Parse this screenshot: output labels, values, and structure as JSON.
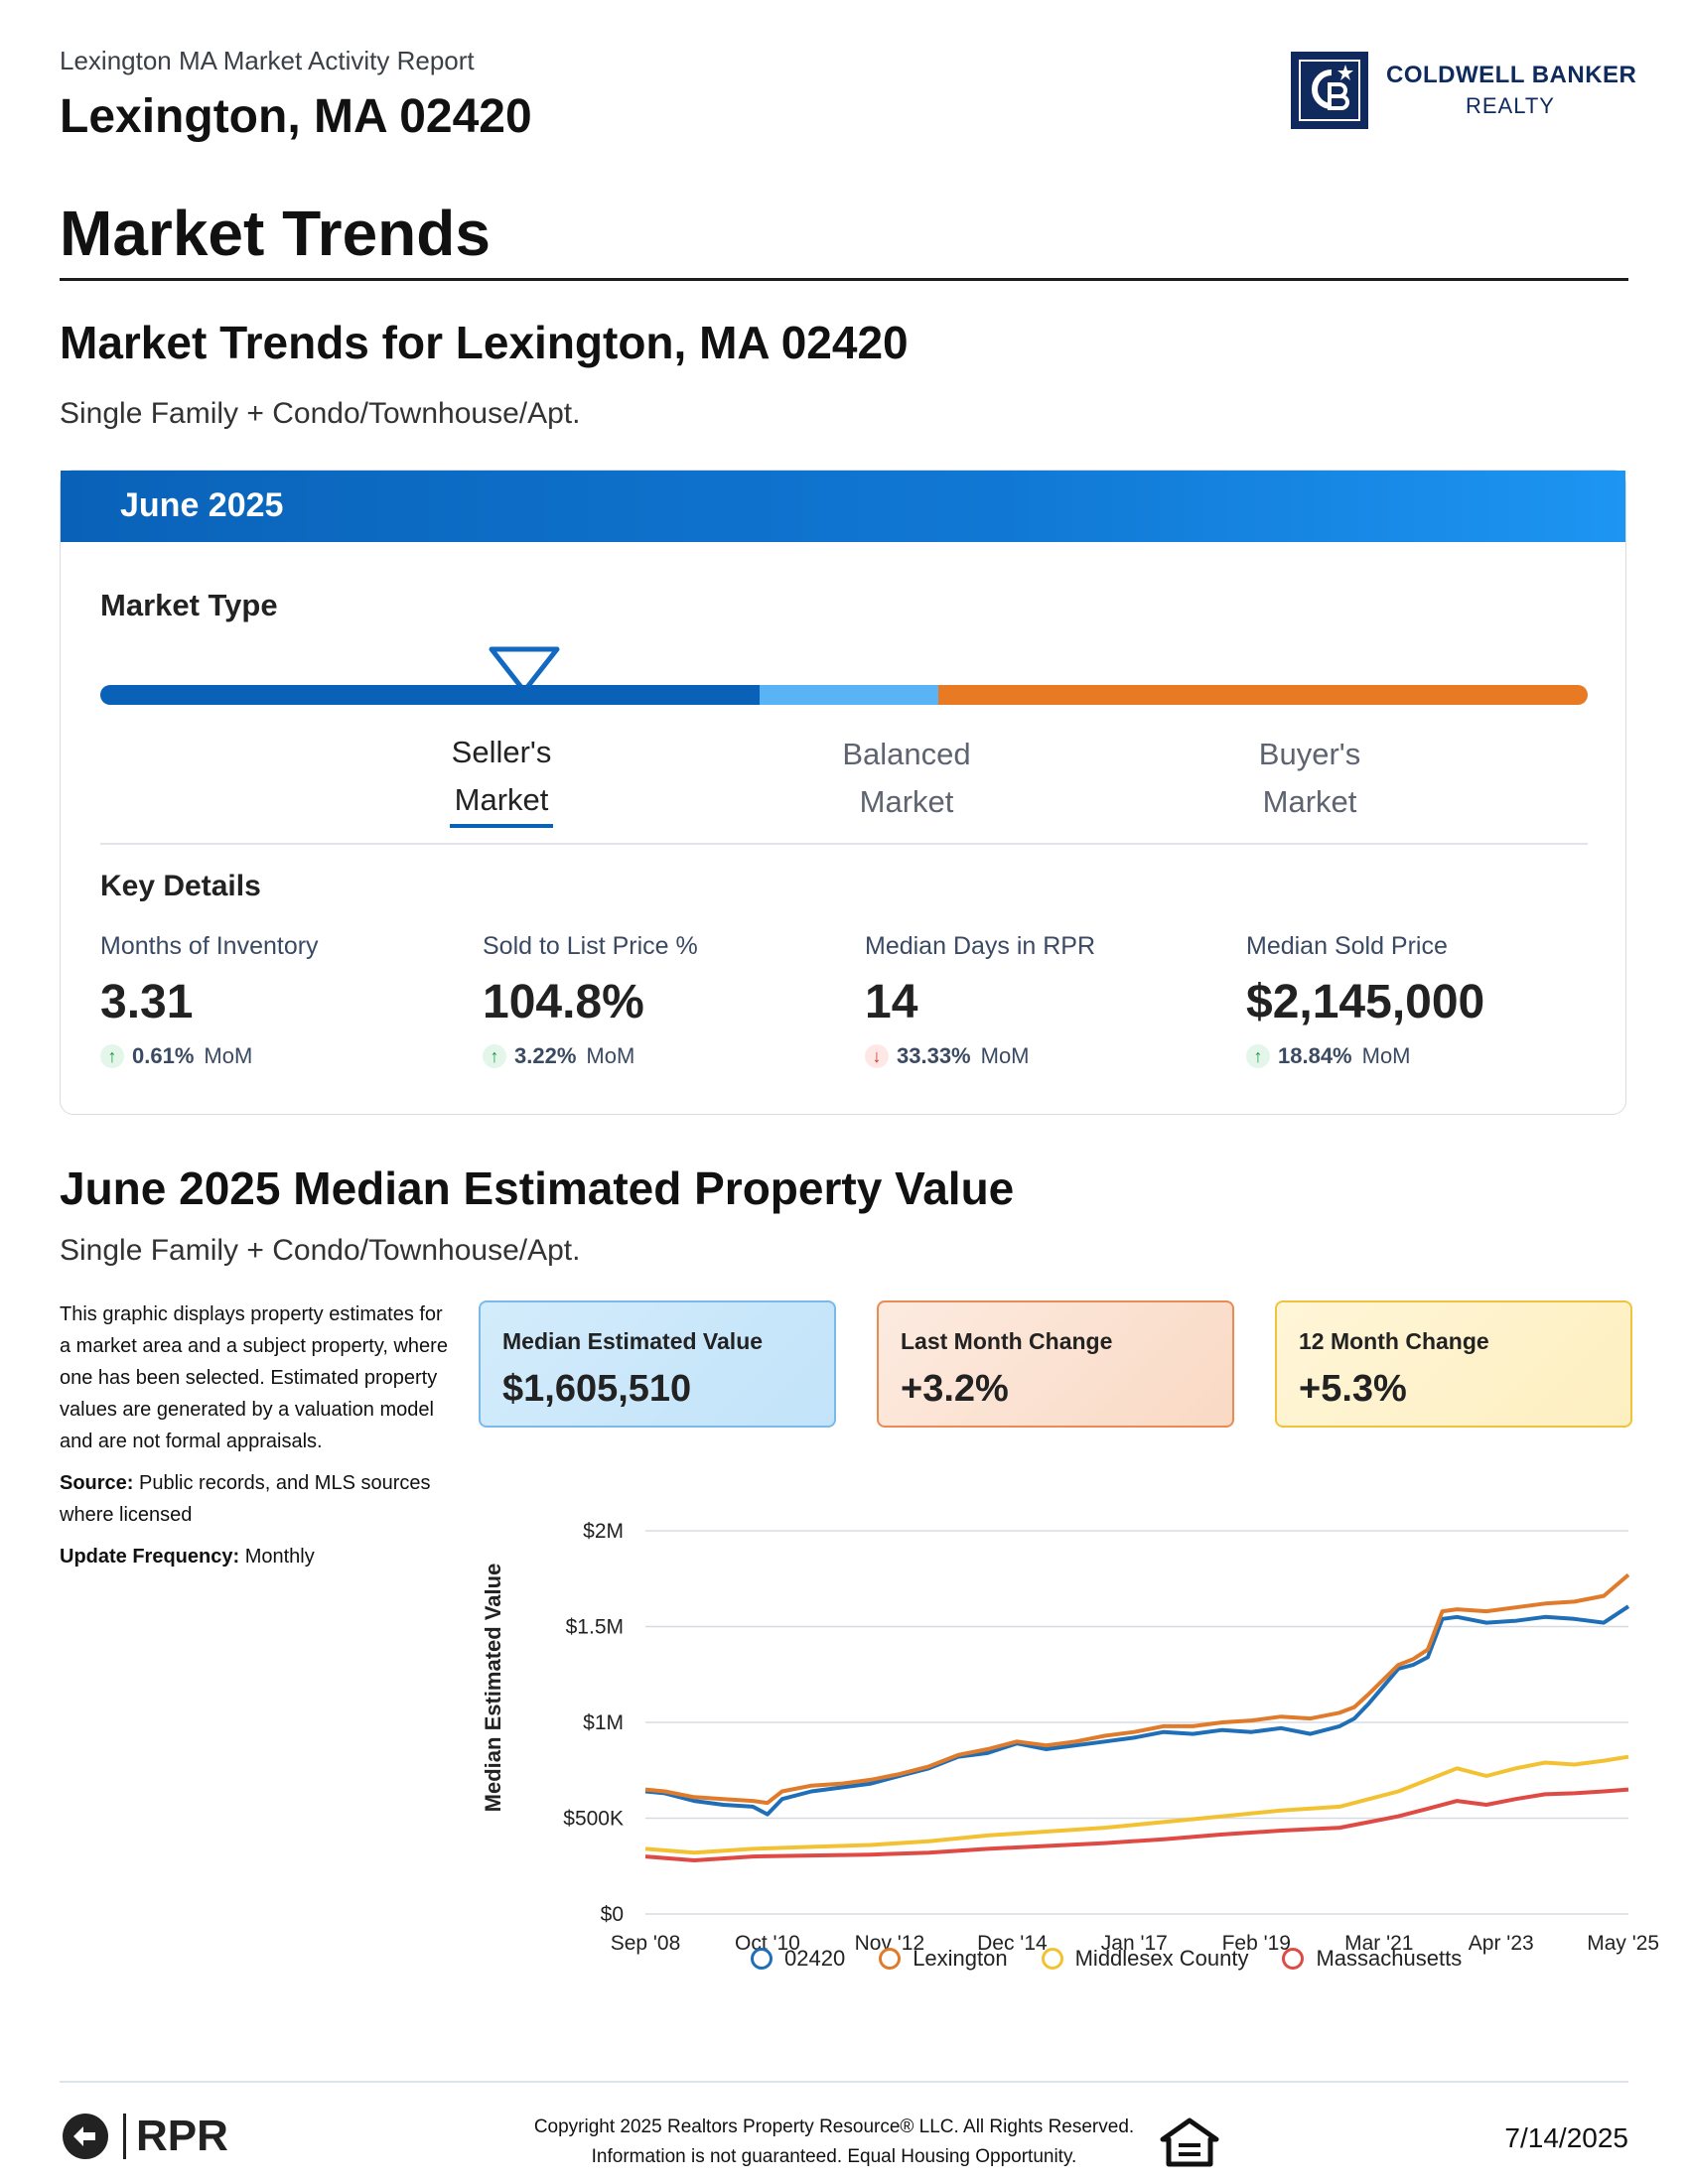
{
  "header": {
    "report_title": "Lexington MA Market Activity Report",
    "location": "Lexington, MA 02420",
    "logo_line1": "COLDWELL BANKER",
    "logo_line2": "REALTY"
  },
  "section_title": "Market Trends",
  "market_trends": {
    "title": "Market Trends for Lexington, MA 02420",
    "subtitle": "Single Family + Condo/Townhouse/Apt.",
    "month": "June 2025",
    "market_type_label": "Market Type",
    "market_types": [
      {
        "line1": "Seller's",
        "line2": "Market",
        "active": true
      },
      {
        "line1": "Balanced",
        "line2": "Market",
        "active": false
      },
      {
        "line1": "Buyer's",
        "line2": "Market",
        "active": false
      }
    ],
    "key_details_label": "Key Details",
    "key_details": [
      {
        "label": "Months of Inventory",
        "value": "3.31",
        "direction": "up",
        "change": "0.61%",
        "period": "MoM"
      },
      {
        "label": "Sold to List Price %",
        "value": "104.8%",
        "direction": "up",
        "change": "3.22%",
        "period": "MoM"
      },
      {
        "label": "Median Days in RPR",
        "value": "14",
        "direction": "down",
        "change": "33.33%",
        "period": "MoM"
      },
      {
        "label": "Median Sold Price",
        "value": "$2,145,000",
        "direction": "up",
        "change": "18.84%",
        "period": "MoM"
      }
    ]
  },
  "estimated_value": {
    "title": "June 2025 Median Estimated Property Value",
    "subtitle": "Single Family + Condo/Townhouse/Apt.",
    "description": "This graphic displays property estimates for a market area and a subject property, where one has been selected. Estimated property values are generated by a valuation model and are not formal appraisals.",
    "source_label": "Source:",
    "source_text": " Public records, and MLS sources where licensed",
    "frequency_label": "Update Frequency:",
    "frequency_text": " Monthly",
    "cards": [
      {
        "label": "Median Estimated Value",
        "value": "$1,605,510"
      },
      {
        "label": "Last Month Change",
        "value": "+3.2%"
      },
      {
        "label": "12 Month Change",
        "value": "+5.3%"
      }
    ]
  },
  "chart_data": {
    "type": "line",
    "ylabel": "Median Estimated Value",
    "ylim": [
      0,
      2000000
    ],
    "ytick_values": [
      0,
      500000,
      1000000,
      1500000,
      2000000
    ],
    "ytick_labels": [
      "$0",
      "$500K",
      "$1M",
      "$1.5M",
      "$2M"
    ],
    "xlim": [
      2008.67,
      2025.42
    ],
    "xtick_values": [
      2008.67,
      2010.75,
      2012.83,
      2014.92,
      2017.0,
      2019.08,
      2021.17,
      2023.25,
      2025.33
    ],
    "xtick_labels": [
      "Sep '08",
      "Oct '10",
      "Nov '12",
      "Dec '14",
      "Jan '17",
      "Feb '19",
      "Mar '21",
      "Apr '23",
      "May '25"
    ],
    "grid": true,
    "legend_position": "bottom",
    "series": [
      {
        "name": "02420",
        "color": "#1f6fb8",
        "x": [
          2008.67,
          2009.0,
          2009.5,
          2010.0,
          2010.5,
          2010.75,
          2011.0,
          2011.5,
          2012.0,
          2012.5,
          2013.0,
          2013.5,
          2014.0,
          2014.5,
          2015.0,
          2015.5,
          2016.0,
          2016.5,
          2017.0,
          2017.5,
          2018.0,
          2018.5,
          2019.0,
          2019.5,
          2020.0,
          2020.5,
          2020.75,
          2021.0,
          2021.5,
          2021.75,
          2022.0,
          2022.25,
          2022.5,
          2023.0,
          2023.5,
          2024.0,
          2024.5,
          2025.0,
          2025.42
        ],
        "y": [
          640000,
          630000,
          590000,
          570000,
          560000,
          520000,
          600000,
          640000,
          660000,
          680000,
          720000,
          760000,
          820000,
          840000,
          890000,
          860000,
          880000,
          900000,
          920000,
          950000,
          940000,
          960000,
          950000,
          970000,
          940000,
          980000,
          1020000,
          1100000,
          1280000,
          1300000,
          1340000,
          1540000,
          1550000,
          1520000,
          1530000,
          1550000,
          1540000,
          1520000,
          1605000
        ]
      },
      {
        "name": "Lexington",
        "color": "#e07b2c",
        "x": [
          2008.67,
          2009.0,
          2009.5,
          2010.0,
          2010.5,
          2010.75,
          2011.0,
          2011.5,
          2012.0,
          2012.5,
          2013.0,
          2013.5,
          2014.0,
          2014.5,
          2015.0,
          2015.5,
          2016.0,
          2016.5,
          2017.0,
          2017.5,
          2018.0,
          2018.5,
          2019.0,
          2019.5,
          2020.0,
          2020.5,
          2020.75,
          2021.0,
          2021.5,
          2021.75,
          2022.0,
          2022.25,
          2022.5,
          2023.0,
          2023.5,
          2024.0,
          2024.5,
          2025.0,
          2025.42
        ],
        "y": [
          650000,
          640000,
          610000,
          600000,
          590000,
          580000,
          640000,
          670000,
          680000,
          700000,
          730000,
          770000,
          830000,
          860000,
          900000,
          880000,
          900000,
          930000,
          950000,
          980000,
          980000,
          1000000,
          1010000,
          1030000,
          1020000,
          1050000,
          1080000,
          1150000,
          1300000,
          1330000,
          1380000,
          1580000,
          1590000,
          1580000,
          1600000,
          1620000,
          1630000,
          1660000,
          1770000
        ]
      },
      {
        "name": "Middlesex County",
        "color": "#f3c233",
        "x": [
          2008.67,
          2009.5,
          2010.5,
          2011.5,
          2012.5,
          2013.5,
          2014.5,
          2015.5,
          2016.5,
          2017.5,
          2018.5,
          2019.5,
          2020.5,
          2021.0,
          2021.5,
          2022.0,
          2022.5,
          2023.0,
          2023.5,
          2024.0,
          2024.5,
          2025.0,
          2025.42
        ],
        "y": [
          340000,
          320000,
          340000,
          350000,
          360000,
          380000,
          410000,
          430000,
          450000,
          480000,
          510000,
          540000,
          560000,
          600000,
          640000,
          700000,
          760000,
          720000,
          760000,
          790000,
          780000,
          800000,
          820000
        ]
      },
      {
        "name": "Massachusetts",
        "color": "#e04a44",
        "x": [
          2008.67,
          2009.5,
          2010.5,
          2011.5,
          2012.5,
          2013.5,
          2014.5,
          2015.5,
          2016.5,
          2017.5,
          2018.5,
          2019.5,
          2020.5,
          2021.0,
          2021.5,
          2022.0,
          2022.5,
          2023.0,
          2023.5,
          2024.0,
          2024.5,
          2025.0,
          2025.42
        ],
        "y": [
          300000,
          280000,
          300000,
          305000,
          310000,
          320000,
          340000,
          355000,
          370000,
          390000,
          415000,
          435000,
          450000,
          480000,
          510000,
          550000,
          590000,
          570000,
          600000,
          625000,
          630000,
          640000,
          650000
        ]
      }
    ]
  },
  "footer": {
    "rpr_text": "RPR",
    "copyright_line1": "Copyright 2025 Realtors Property Resource® LLC. All Rights Reserved.",
    "copyright_line2": "Information is not guaranteed. Equal Housing Opportunity.",
    "date": "7/14/2025"
  }
}
